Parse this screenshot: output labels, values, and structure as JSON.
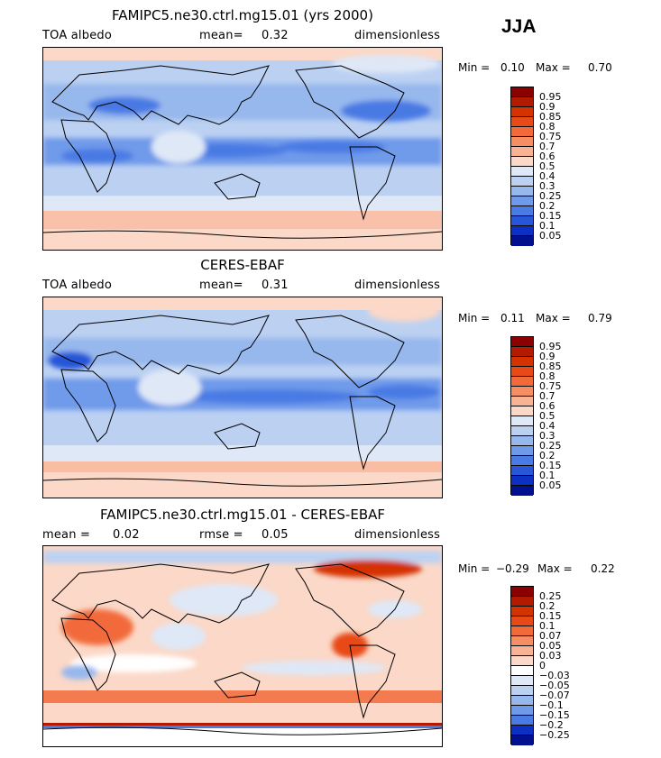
{
  "season_label": "JJA",
  "chart_data": [
    {
      "type": "heatmap",
      "title": "FAMIPC5.ne30.ctrl.mg15.01 (yrs 2000)",
      "left_label": "TOA albedo",
      "stat1_label": "mean=",
      "stat1_value": "0.32",
      "stat2_label": "",
      "stat2_value": "",
      "right_label": "dimensionless",
      "min_label": "Min =",
      "min_value": "0.10",
      "max_label": "Max =",
      "max_value": "0.70",
      "levels": [
        "0.95",
        "0.9",
        "0.85",
        "0.8",
        "0.75",
        "0.7",
        "0.6",
        "0.5",
        "0.4",
        "0.3",
        "0.25",
        "0.2",
        "0.15",
        "0.1",
        "0.05"
      ],
      "colors": [
        "#8b0000",
        "#b31a00",
        "#d43300",
        "#e84a17",
        "#f26a3a",
        "#f58f63",
        "#f8b294",
        "#fbd8c7",
        "#dfe8f7",
        "#bcd1f2",
        "#97b8ed",
        "#6f9aea",
        "#4a7ae4",
        "#2756d8",
        "#0c2fc4",
        "#00108e"
      ]
    },
    {
      "type": "heatmap",
      "title": "CERES-EBAF",
      "left_label": "TOA albedo",
      "stat1_label": "mean=",
      "stat1_value": "0.31",
      "stat2_label": "",
      "stat2_value": "",
      "right_label": "dimensionless",
      "min_label": "Min =",
      "min_value": "0.11",
      "max_label": "Max =",
      "max_value": "0.79",
      "levels": [
        "0.95",
        "0.9",
        "0.85",
        "0.8",
        "0.75",
        "0.7",
        "0.6",
        "0.5",
        "0.4",
        "0.3",
        "0.25",
        "0.2",
        "0.15",
        "0.1",
        "0.05"
      ],
      "colors": [
        "#8b0000",
        "#b31a00",
        "#d43300",
        "#e84a17",
        "#f26a3a",
        "#f58f63",
        "#f8b294",
        "#fbd8c7",
        "#dfe8f7",
        "#bcd1f2",
        "#97b8ed",
        "#6f9aea",
        "#4a7ae4",
        "#2756d8",
        "#0c2fc4",
        "#00108e"
      ]
    },
    {
      "type": "heatmap",
      "title": "FAMIPC5.ne30.ctrl.mg15.01 - CERES-EBAF",
      "left_label": "",
      "stat1_label": "mean =",
      "stat1_value": "0.02",
      "stat2_label": "rmse =",
      "stat2_value": "0.05",
      "right_label": "dimensionless",
      "min_label": "Min =",
      "min_value": "−0.29",
      "max_label": "Max =",
      "max_value": "0.22",
      "levels": [
        "0.25",
        "0.2",
        "0.15",
        "0.1",
        "0.07",
        "0.05",
        "0.03",
        "0",
        "−0.03",
        "−0.05",
        "−0.07",
        "−0.1",
        "−0.15",
        "−0.2",
        "−0.25"
      ],
      "colors": [
        "#8b0000",
        "#b31a00",
        "#d43300",
        "#e84a17",
        "#f26a3a",
        "#f58f63",
        "#f8b294",
        "#fbd8c7",
        "#ffffff",
        "#dfe8f7",
        "#bcd1f2",
        "#97b8ed",
        "#6f9aea",
        "#4a7ae4",
        "#0c2fc4",
        "#00108e"
      ]
    }
  ]
}
